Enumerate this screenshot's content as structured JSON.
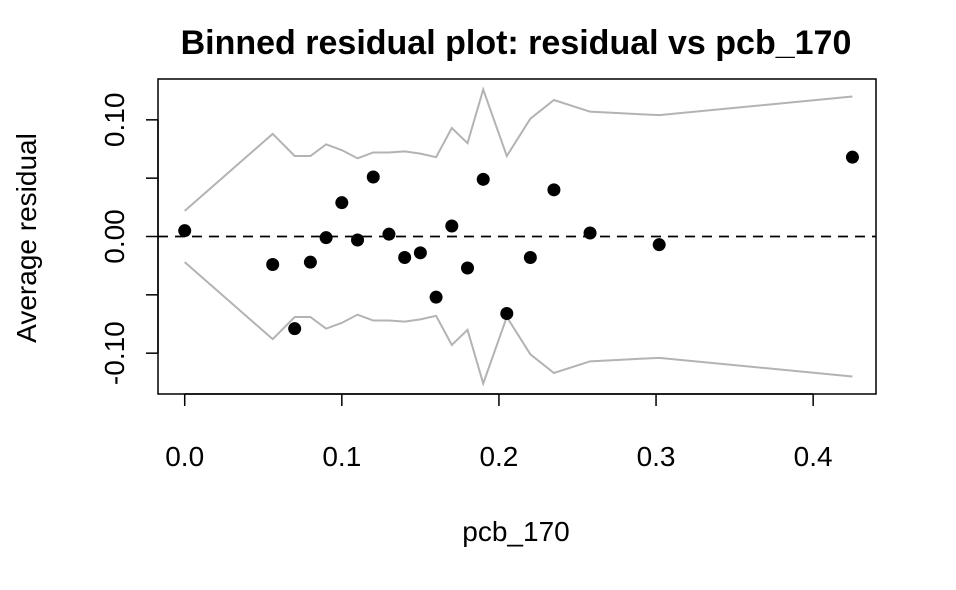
{
  "chart_data": {
    "type": "scatter",
    "title": "Binned residual plot: residual vs pcb_170",
    "xlabel": "pcb_170",
    "ylabel": "Average residual",
    "xlim": [
      -0.017,
      0.44
    ],
    "ylim": [
      -0.135,
      0.135
    ],
    "xticks": [
      0.0,
      0.1,
      0.2,
      0.3,
      0.4
    ],
    "xtick_labels": [
      "0.0",
      "0.1",
      "0.2",
      "0.3",
      "0.4"
    ],
    "yticks": [
      -0.1,
      -0.05,
      0.0,
      0.05,
      0.1
    ],
    "ytick_labels": [
      "-0.10",
      "",
      "0.00",
      "",
      "0.10"
    ],
    "reference_line": {
      "y": 0,
      "style": "dashed",
      "color": "#000000"
    },
    "colors": {
      "points": "#000000",
      "bounds": "#b3b3b3"
    },
    "points": {
      "x": [
        0.0,
        0.056,
        0.07,
        0.08,
        0.09,
        0.1,
        0.11,
        0.12,
        0.13,
        0.14,
        0.15,
        0.16,
        0.17,
        0.18,
        0.19,
        0.205,
        0.22,
        0.235,
        0.258,
        0.302,
        0.425
      ],
      "y": [
        0.005,
        -0.024,
        -0.079,
        -0.022,
        -0.001,
        0.029,
        -0.003,
        0.051,
        0.002,
        -0.018,
        -0.014,
        -0.052,
        0.009,
        -0.027,
        0.049,
        -0.066,
        -0.018,
        0.04,
        0.003,
        -0.007,
        0.068
      ]
    },
    "bounds": {
      "x": [
        0.0,
        0.056,
        0.07,
        0.08,
        0.09,
        0.1,
        0.11,
        0.12,
        0.13,
        0.14,
        0.15,
        0.16,
        0.17,
        0.18,
        0.19,
        0.205,
        0.22,
        0.235,
        0.258,
        0.302,
        0.425
      ],
      "upper": [
        0.022,
        0.088,
        0.069,
        0.069,
        0.079,
        0.074,
        0.067,
        0.072,
        0.072,
        0.073,
        0.071,
        0.068,
        0.093,
        0.08,
        0.126,
        0.069,
        0.101,
        0.117,
        0.107,
        0.104,
        0.12
      ],
      "lower": [
        -0.022,
        -0.088,
        -0.069,
        -0.069,
        -0.079,
        -0.074,
        -0.067,
        -0.072,
        -0.072,
        -0.073,
        -0.071,
        -0.068,
        -0.093,
        -0.08,
        -0.126,
        -0.069,
        -0.101,
        -0.117,
        -0.107,
        -0.104,
        -0.12
      ]
    }
  }
}
